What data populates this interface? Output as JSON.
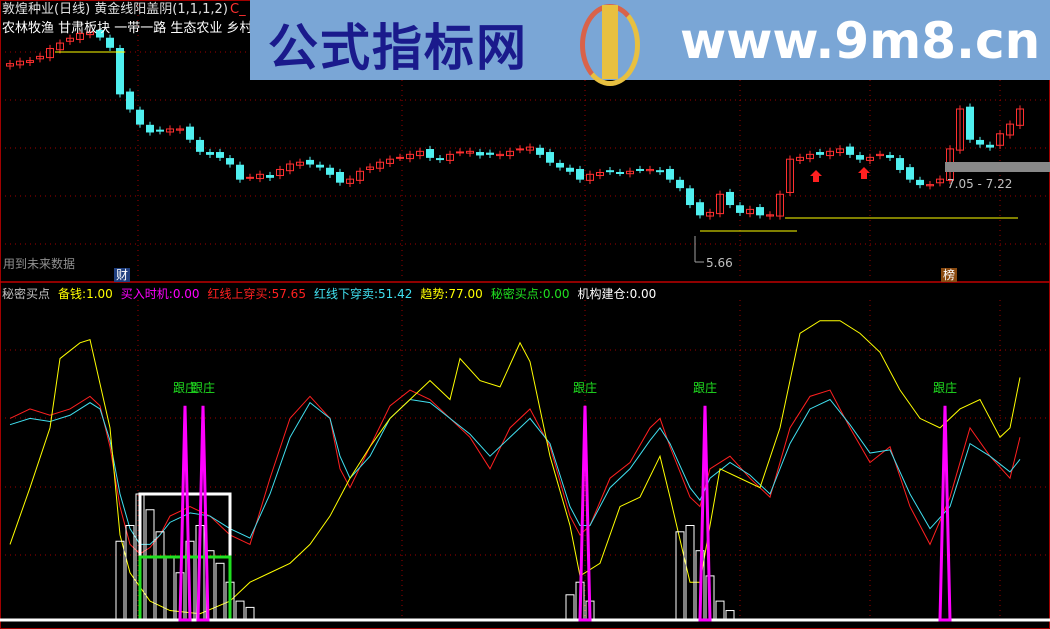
{
  "header": {
    "title": "敦煌种业(日线) 黄金线阳盖阴(1,1,1,2)",
    "corner": "C_",
    "sectors": "农林牧渔 甘肃板块 一带一路 生态农业 乡村振兴",
    "future_note": "用到未来数据",
    "tag_cai": "财",
    "tag_bang": "榜",
    "low_label": "5.66",
    "range_label": "7.05 - 7.22"
  },
  "watermark": {
    "site_name": "公式指标网",
    "url": "www.9m8.cn"
  },
  "indicator_header": {
    "name": "秘密买点",
    "items": [
      {
        "label": "备钱:",
        "value": "1.00",
        "color": "#ffff00"
      },
      {
        "label": "买入时机:",
        "value": "0.00",
        "color": "#ff00ff"
      },
      {
        "label": "红线上穿买:",
        "value": "57.65",
        "color": "#ff2020"
      },
      {
        "label": "红线下穿卖:",
        "value": "51.42",
        "color": "#40e0f0"
      },
      {
        "label": "趋势:",
        "value": "77.00",
        "color": "#ffff00"
      },
      {
        "label": "秘密买点:",
        "value": "0.00",
        "color": "#20e020"
      },
      {
        "label": "机构建仓:",
        "value": "0.00",
        "color": "#ffffff"
      }
    ],
    "signal_label": "跟庄"
  },
  "colors": {
    "up": "#ff3030",
    "down": "#50f0f0",
    "grid": "#a00000",
    "signal": "#ff00ff",
    "trend": "#ffff00"
  },
  "chart_data": [
    {
      "type": "candlestick",
      "ylim": [
        5.4,
        9.6
      ],
      "closes": [
        8.68,
        8.72,
        8.73,
        8.8,
        8.93,
        9.02,
        9.1,
        9.18,
        9.2,
        9.12,
        8.95,
        8.18,
        7.93,
        7.68,
        7.55,
        7.57,
        7.6,
        7.6,
        7.43,
        7.23,
        7.18,
        7.13,
        7.02,
        6.77,
        6.8,
        6.85,
        6.8,
        6.93,
        7.02,
        7.05,
        7.02,
        6.97,
        6.85,
        6.72,
        6.77,
        6.9,
        6.97,
        7.05,
        7.1,
        7.13,
        7.18,
        7.23,
        7.13,
        7.1,
        7.18,
        7.22,
        7.23,
        7.17,
        7.18,
        7.18,
        7.23,
        7.27,
        7.3,
        7.18,
        7.05,
        6.97,
        6.9,
        6.77,
        6.85,
        6.88,
        6.9,
        6.88,
        6.9,
        6.93,
        6.93,
        6.9,
        6.77,
        6.63,
        6.35,
        6.18,
        6.22,
        6.52,
        6.35,
        6.22,
        6.27,
        6.18,
        6.18,
        6.52,
        7.1,
        7.13,
        7.18,
        7.18,
        7.23,
        7.27,
        7.18,
        7.1,
        7.13,
        7.18,
        7.13,
        6.93,
        6.77,
        6.68,
        6.68,
        6.77,
        7.27,
        7.93,
        7.43,
        7.35,
        7.3,
        7.52,
        7.68,
        7.93
      ],
      "low_marker": 5.66,
      "range_marker": [
        7.05,
        7.22
      ]
    },
    {
      "type": "line",
      "ylim": [
        0,
        100
      ],
      "series": [
        {
          "name": "红线上穿买",
          "color": "#ff2020",
          "points": [
            [
              0,
              64
            ],
            [
              2,
              67
            ],
            [
              4,
              65
            ],
            [
              6,
              67
            ],
            [
              8,
              71
            ],
            [
              9,
              68
            ],
            [
              10,
              55
            ],
            [
              11,
              36
            ],
            [
              12,
              24
            ],
            [
              13,
              21
            ],
            [
              14,
              23
            ],
            [
              15,
              27
            ],
            [
              16,
              33
            ],
            [
              18,
              36
            ],
            [
              20,
              33
            ],
            [
              22,
              27
            ],
            [
              24,
              24
            ],
            [
              26,
              45
            ],
            [
              28,
              64
            ],
            [
              30,
              71
            ],
            [
              32,
              64
            ],
            [
              33,
              48
            ],
            [
              34,
              42
            ],
            [
              36,
              55
            ],
            [
              38,
              68
            ],
            [
              40,
              73
            ],
            [
              42,
              70
            ],
            [
              44,
              64
            ],
            [
              46,
              58
            ],
            [
              48,
              48
            ],
            [
              50,
              61
            ],
            [
              52,
              67
            ],
            [
              54,
              55
            ],
            [
              56,
              33
            ],
            [
              57,
              27
            ],
            [
              58,
              30
            ],
            [
              60,
              45
            ],
            [
              62,
              50
            ],
            [
              64,
              61
            ],
            [
              65,
              64
            ],
            [
              66,
              55
            ],
            [
              68,
              39
            ],
            [
              69,
              36
            ],
            [
              70,
              48
            ],
            [
              72,
              52
            ],
            [
              74,
              45
            ],
            [
              76,
              39
            ],
            [
              78,
              61
            ],
            [
              80,
              71
            ],
            [
              82,
              73
            ],
            [
              84,
              61
            ],
            [
              86,
              50
            ],
            [
              88,
              55
            ],
            [
              90,
              36
            ],
            [
              92,
              24
            ],
            [
              94,
              39
            ],
            [
              96,
              61
            ],
            [
              98,
              52
            ],
            [
              100,
              45
            ],
            [
              101,
              58
            ]
          ]
        },
        {
          "name": "红线下穿卖",
          "color": "#40e0f0",
          "points": [
            [
              0,
              62
            ],
            [
              2,
              64
            ],
            [
              4,
              63
            ],
            [
              6,
              65
            ],
            [
              8,
              69
            ],
            [
              9,
              67
            ],
            [
              10,
              57
            ],
            [
              11,
              40
            ],
            [
              12,
              29
            ],
            [
              13,
              24
            ],
            [
              14,
              24
            ],
            [
              15,
              27
            ],
            [
              16,
              31
            ],
            [
              18,
              34
            ],
            [
              20,
              33
            ],
            [
              22,
              29
            ],
            [
              24,
              26
            ],
            [
              26,
              40
            ],
            [
              28,
              58
            ],
            [
              30,
              69
            ],
            [
              32,
              64
            ],
            [
              33,
              52
            ],
            [
              34,
              45
            ],
            [
              36,
              52
            ],
            [
              38,
              64
            ],
            [
              40,
              70
            ],
            [
              42,
              69
            ],
            [
              44,
              64
            ],
            [
              46,
              59
            ],
            [
              48,
              52
            ],
            [
              50,
              58
            ],
            [
              52,
              64
            ],
            [
              54,
              56
            ],
            [
              56,
              36
            ],
            [
              57,
              30
            ],
            [
              58,
              30
            ],
            [
              60,
              42
            ],
            [
              62,
              48
            ],
            [
              64,
              57
            ],
            [
              65,
              61
            ],
            [
              66,
              56
            ],
            [
              68,
              42
            ],
            [
              69,
              38
            ],
            [
              70,
              45
            ],
            [
              72,
              50
            ],
            [
              74,
              46
            ],
            [
              76,
              40
            ],
            [
              78,
              56
            ],
            [
              80,
              67
            ],
            [
              82,
              70
            ],
            [
              84,
              62
            ],
            [
              86,
              53
            ],
            [
              88,
              54
            ],
            [
              90,
              40
            ],
            [
              92,
              29
            ],
            [
              94,
              36
            ],
            [
              96,
              56
            ],
            [
              98,
              52
            ],
            [
              100,
              47
            ],
            [
              101,
              51
            ]
          ]
        },
        {
          "name": "趋势",
          "color": "#ffff00",
          "points": [
            [
              0,
              24
            ],
            [
              2,
              42
            ],
            [
              4,
              61
            ],
            [
              5,
              83
            ],
            [
              7,
              88
            ],
            [
              8,
              89
            ],
            [
              10,
              61
            ],
            [
              11,
              27
            ],
            [
              12,
              15
            ],
            [
              14,
              6
            ],
            [
              16,
              3
            ],
            [
              19,
              2
            ],
            [
              22,
              6
            ],
            [
              24,
              12
            ],
            [
              26,
              15
            ],
            [
              28,
              18
            ],
            [
              30,
              24
            ],
            [
              32,
              33
            ],
            [
              34,
              45
            ],
            [
              36,
              55
            ],
            [
              38,
              64
            ],
            [
              40,
              70
            ],
            [
              42,
              76
            ],
            [
              44,
              70
            ],
            [
              45,
              83
            ],
            [
              47,
              76
            ],
            [
              49,
              74
            ],
            [
              51,
              88
            ],
            [
              52,
              82
            ],
            [
              54,
              52
            ],
            [
              56,
              30
            ],
            [
              57,
              14
            ],
            [
              59,
              18
            ],
            [
              61,
              36
            ],
            [
              63,
              39
            ],
            [
              65,
              52
            ],
            [
              66,
              39
            ],
            [
              68,
              12
            ],
            [
              69,
              12
            ],
            [
              71,
              48
            ],
            [
              73,
              45
            ],
            [
              75,
              42
            ],
            [
              77,
              61
            ],
            [
              79,
              91
            ],
            [
              81,
              95
            ],
            [
              83,
              95
            ],
            [
              85,
              91
            ],
            [
              87,
              85
            ],
            [
              89,
              73
            ],
            [
              91,
              64
            ],
            [
              93,
              61
            ],
            [
              95,
              67
            ],
            [
              97,
              70
            ],
            [
              99,
              58
            ],
            [
              100,
              61
            ],
            [
              101,
              77
            ]
          ]
        }
      ],
      "signals": [
        17.5,
        19.3,
        57.5,
        69.5,
        93.5
      ],
      "box_white": [
        13,
        22,
        40
      ],
      "box_green": [
        13,
        22,
        20
      ]
    }
  ]
}
